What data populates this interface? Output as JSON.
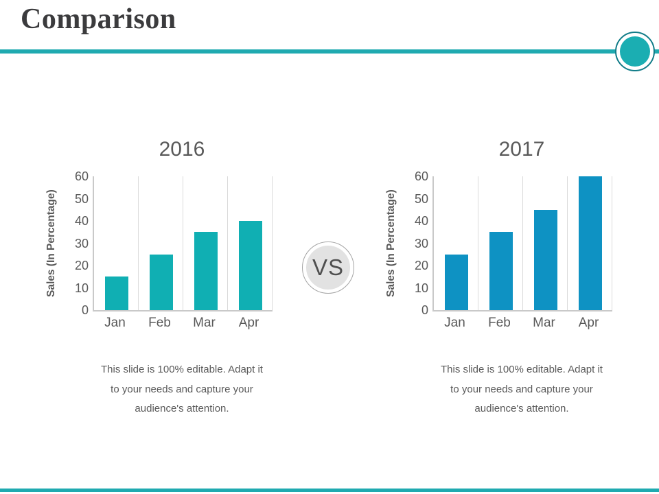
{
  "slide": {
    "title": "Comparison",
    "vs_label": "VS",
    "accent_color": "#1faab0",
    "title_color": "#3b3b3d",
    "text_color": "#595959"
  },
  "chart_data": [
    {
      "type": "bar",
      "title": "2016",
      "categories": [
        "Jan",
        "Feb",
        "Mar",
        "Apr"
      ],
      "values": [
        15,
        25,
        35,
        40
      ],
      "xlabel": "",
      "ylabel": "Sales (In Percentage)",
      "ylim": [
        0,
        60
      ],
      "ytick_step": 10,
      "grid": "vertical-category-separators",
      "legend": "none",
      "bar_color": "#10afb3",
      "caption": "This slide is 100% editable. Adapt it to your needs and capture your audience's attention."
    },
    {
      "type": "bar",
      "title": "2017",
      "categories": [
        "Jan",
        "Feb",
        "Mar",
        "Apr"
      ],
      "values": [
        25,
        35,
        45,
        60
      ],
      "xlabel": "",
      "ylabel": "Sales (In Percentage)",
      "ylim": [
        0,
        60
      ],
      "ytick_step": 10,
      "grid": "vertical-category-separators",
      "legend": "none",
      "bar_color": "#0e92c3",
      "caption": "This slide is 100% editable. Adapt it to your needs and capture your audience's attention."
    }
  ]
}
